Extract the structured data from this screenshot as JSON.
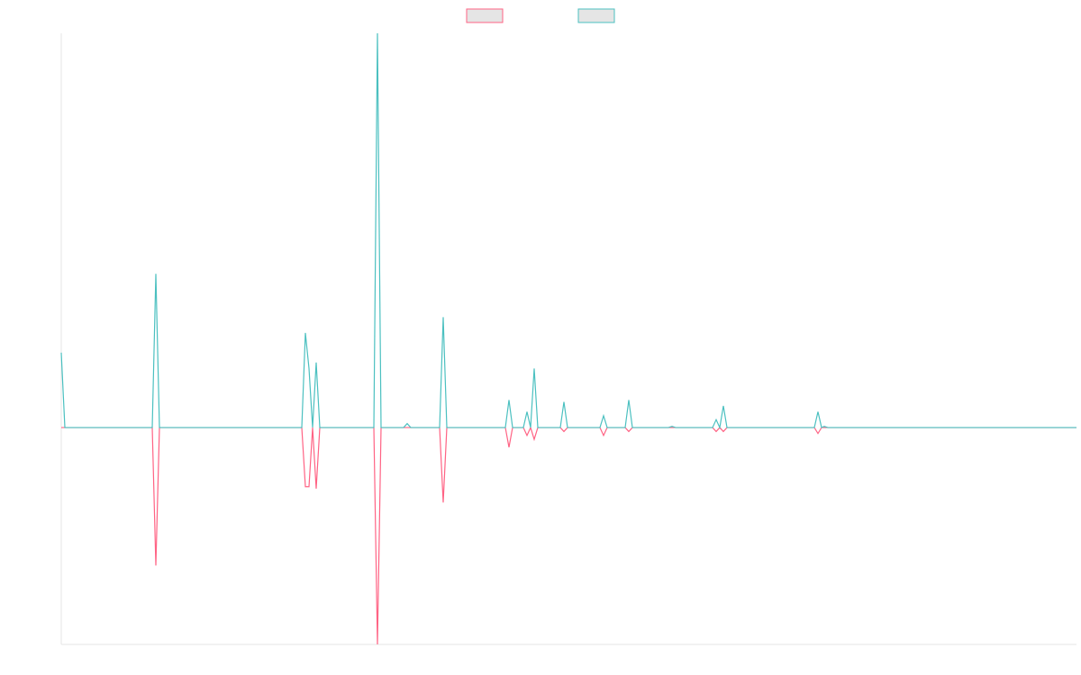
{
  "chart_data": {
    "type": "line",
    "x": [
      0,
      4,
      101,
      105,
      109,
      267,
      271,
      275,
      279,
      283,
      287,
      347,
      351,
      355,
      380,
      384,
      388,
      420,
      424,
      428,
      493,
      497,
      501,
      513,
      517,
      521,
      525,
      529,
      554,
      558,
      562,
      598,
      602,
      606,
      626,
      630,
      634,
      674,
      678,
      682,
      723,
      727,
      731,
      735,
      739,
      836,
      840,
      844,
      847,
      851,
      1127
    ],
    "xlim": [
      0,
      1127
    ],
    "ylim": [
      -0.55,
      1
    ],
    "grid": false,
    "legend": "top",
    "series": [
      {
        "color": "#ff6384",
        "values": [
          0,
          0,
          0,
          -0.35,
          0,
          0,
          -0.15,
          -0.15,
          0,
          -0.155,
          0,
          0,
          -0.55,
          0,
          0,
          0,
          0,
          0,
          -0.19,
          0,
          0,
          -0.05,
          0,
          0,
          -0.02,
          0,
          -0.03,
          0,
          0,
          -0.01,
          0,
          0,
          -0.02,
          0,
          0,
          -0.01,
          0,
          0,
          0,
          0,
          0,
          -0.01,
          0,
          -0.01,
          0,
          0,
          -0.015,
          0,
          0,
          0,
          0
        ]
      },
      {
        "color": "#4bc0c0",
        "values": [
          0.19,
          0,
          0,
          0.39,
          0,
          0,
          0.24,
          0.15,
          0,
          0.165,
          0,
          0,
          1,
          0,
          0,
          0.01,
          0,
          0,
          0.28,
          0,
          0,
          0.07,
          0,
          0,
          0.04,
          0,
          0.15,
          0,
          0,
          0.065,
          0,
          0,
          0.03,
          0,
          0,
          0.07,
          0,
          0,
          0.003,
          0,
          0,
          0.02,
          0,
          0.055,
          0,
          0,
          0.04,
          0,
          0.003,
          0,
          0
        ]
      }
    ]
  }
}
